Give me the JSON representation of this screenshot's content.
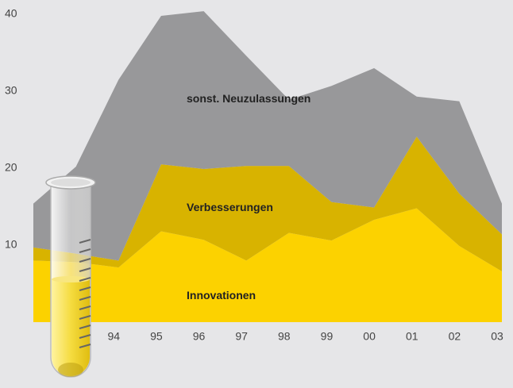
{
  "chart_data": {
    "type": "stacked_area",
    "categories": [
      null,
      null,
      "94",
      "95",
      "96",
      "97",
      "98",
      "99",
      "00",
      "01",
      "02",
      "03"
    ],
    "series": [
      {
        "name": "Innovationen",
        "color": "#fcd200",
        "values": [
          8.0,
          7.8,
          7.1,
          11.8,
          10.7,
          8.0,
          11.6,
          10.6,
          13.3,
          14.8,
          9.9,
          6.6
        ]
      },
      {
        "name": "Verbesserungen",
        "color": "#d8b300",
        "values": [
          1.7,
          1.1,
          0.9,
          8.7,
          9.2,
          12.3,
          8.7,
          5.0,
          1.6,
          9.3,
          6.8,
          4.8
        ]
      },
      {
        "name": "sonst. Neuzulassungen",
        "color": "#98989a",
        "values": [
          5.7,
          11.3,
          23.5,
          19.3,
          20.5,
          14.3,
          8.6,
          15.1,
          18.1,
          5.2,
          12.0,
          4.0
        ]
      }
    ],
    "ylim": [
      0,
      40
    ],
    "yticks": [
      10,
      20,
      30,
      40
    ]
  }
}
